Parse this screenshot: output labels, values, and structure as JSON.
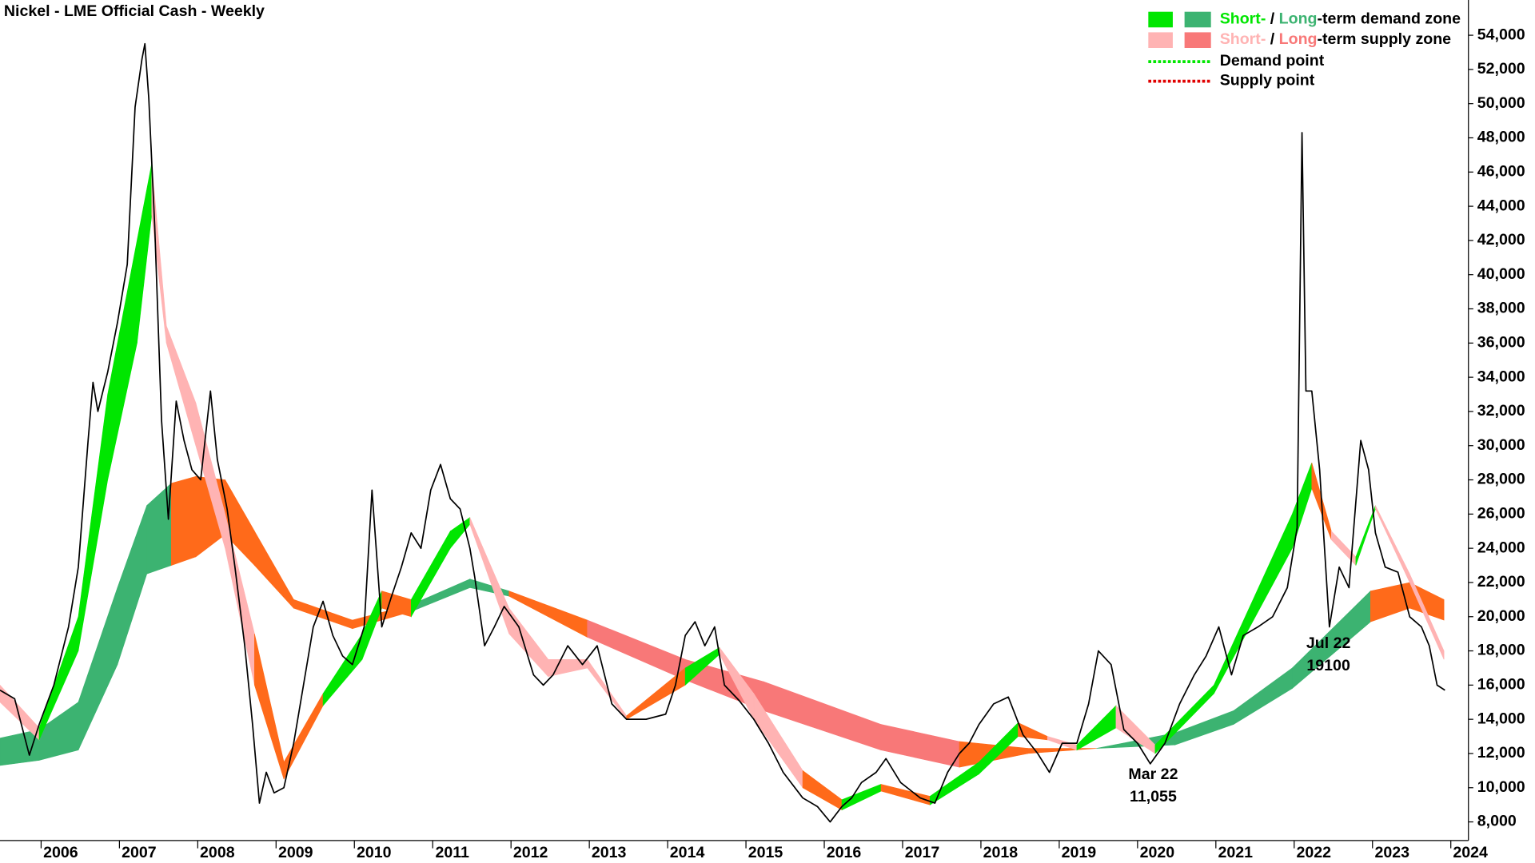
{
  "chart_data": {
    "type": "line",
    "title": "Nickel - LME Official Cash - Weekly",
    "xlim": [
      2005.475,
      2024.225
    ],
    "xticks": [
      2006,
      2007,
      2008,
      2009,
      2010,
      2011,
      2012,
      2013,
      2014,
      2015,
      2016,
      2017,
      2018,
      2019,
      2020,
      2021,
      2022,
      2023,
      2024
    ],
    "ylim": [
      6913,
      56060
    ],
    "yticks": [
      {
        "value": 8000,
        "label": "8,000"
      },
      {
        "value": 10000,
        "label": "10,000"
      },
      {
        "value": 12000,
        "label": "12,000"
      },
      {
        "value": 14000,
        "label": "14,000"
      },
      {
        "value": 16000,
        "label": "16,000"
      },
      {
        "value": 18000,
        "label": "18,000"
      },
      {
        "value": 20000,
        "label": "20,000"
      },
      {
        "value": 22000,
        "label": "22,000"
      },
      {
        "value": 24000,
        "label": "24,000"
      },
      {
        "value": 26000,
        "label": "26,000"
      },
      {
        "value": 28000,
        "label": "28,000"
      },
      {
        "value": 30000,
        "label": "30,000"
      },
      {
        "value": 32000,
        "label": "32,000"
      },
      {
        "value": 34000,
        "label": "34,000"
      },
      {
        "value": 36000,
        "label": "36,000"
      },
      {
        "value": 38000,
        "label": "38,000"
      },
      {
        "value": 40000,
        "label": "40,000"
      },
      {
        "value": 42000,
        "label": "42,000"
      },
      {
        "value": 44000,
        "label": "44,000"
      },
      {
        "value": 46000,
        "label": "46,000"
      },
      {
        "value": 48000,
        "label": "48,000"
      },
      {
        "value": 50000,
        "label": "50,000"
      },
      {
        "value": 52000,
        "label": "52,000"
      },
      {
        "value": 54000,
        "label": "54,000"
      }
    ],
    "grid": false,
    "bands": [
      {
        "x": [
          2005.475,
          2005.975,
          2006.475,
          2006.975,
          2007.35,
          2007.6625,
          2007.975,
          2008.35,
          2008.725,
          2009.225,
          2009.975,
          2010.725,
          2011.475,
          2011.975,
          2012.975,
          2014.225,
          2015.225,
          2016.725,
          2017.725,
          2018.6,
          2019.475,
          2020.475,
          2021.225,
          2021.975,
          2022.975,
          2023.475,
          2023.9125
        ],
        "upper": [
          12900,
          13400,
          15000,
          21700,
          26500,
          27800,
          28200,
          28000,
          25000,
          21000,
          19800,
          20700,
          22200,
          21500,
          19800,
          17500,
          16200,
          13700,
          12700,
          12300,
          12300,
          13200,
          14500,
          17000,
          21500,
          22000,
          21000
        ],
        "lower": [
          11300,
          11600,
          12200,
          17200,
          22500,
          23000,
          23500,
          24800,
          23000,
          20500,
          19300,
          20300,
          21700,
          21200,
          18800,
          16300,
          14500,
          12200,
          11200,
          12000,
          12300,
          12500,
          13700,
          15800,
          19700,
          20500,
          19800
        ],
        "colors": [
          "#3cb371",
          "#3cb371",
          "#3cb371",
          "#3cb371",
          "#3cb371",
          "#ff6a1a",
          "#ff6a1a",
          "#ff6a1a",
          "#ff6a1a",
          "#ff6a1a",
          "#ff6a1a",
          "#3cb371",
          "#3cb371",
          "#ff6a1a",
          "#f87878",
          "#f87878",
          "#f87878",
          "#f87878",
          "#ff6a1a",
          "#ff6a1a",
          "#3cb371",
          "#3cb371",
          "#3cb371",
          "#3cb371",
          "#ff6a1a",
          "#ff6a1a"
        ]
      },
      {
        "x": [
          2005.475,
          2005.975,
          2006.475,
          2006.85,
          2007.225,
          2007.4125,
          2007.6,
          2007.975,
          2008.35,
          2008.725,
          2009.1,
          2009.6,
          2010.1,
          2010.35,
          2010.725,
          2011.225,
          2011.475,
          2011.975,
          2012.475,
          2012.975,
          2013.475,
          2014.225,
          2014.6625,
          2015.1,
          2015.725,
          2016.225,
          2016.725,
          2017.35,
          2017.975,
          2018.475,
          2018.85,
          2019.225,
          2019.725,
          2020.225,
          2020.975,
          2021.975,
          2022.225,
          2022.475,
          2022.7875,
          2023.0375,
          2023.475,
          2023.9125
        ],
        "upper": [
          16000,
          13500,
          20000,
          33000,
          42000,
          46500,
          37000,
          32500,
          26000,
          19000,
          11500,
          15500,
          19000,
          21500,
          21000,
          25000,
          25800,
          20500,
          17500,
          17500,
          14200,
          17000,
          18200,
          15500,
          11000,
          9300,
          10200,
          9500,
          11500,
          13800,
          13000,
          12500,
          14800,
          12500,
          16000,
          26000,
          29000,
          25000,
          23500,
          26500,
          22500,
          18000
        ],
        "lower": [
          15000,
          12800,
          18000,
          28000,
          36000,
          43500,
          36000,
          30000,
          24000,
          16000,
          10500,
          14800,
          17500,
          20500,
          20000,
          24000,
          25400,
          19000,
          16500,
          17000,
          14000,
          16000,
          17800,
          14000,
          10000,
          8700,
          9800,
          9000,
          10800,
          13000,
          12800,
          12200,
          13500,
          12000,
          15500,
          24000,
          27500,
          24500,
          23000,
          26300,
          22000,
          17500
        ],
        "colors": [
          "#ffb3b3",
          "#00e600",
          "#00e600",
          "#00e600",
          "#00e600",
          "#ffb3b3",
          "#ffb3b3",
          "#ffb3b3",
          "#ffb3b3",
          "#ff6a1a",
          "#ff6a1a",
          "#00e600",
          "#00e600",
          "#ff6a1a",
          "#00e600",
          "#00e600",
          "#ffb3b3",
          "#ffb3b3",
          "#ffb3b3",
          "#ffb3b3",
          "#ff6a1a",
          "#00e600",
          "#ffb3b3",
          "#ffb3b3",
          "#ff6a1a",
          "#00e600",
          "#ff6a1a",
          "#00e600",
          "#00e600",
          "#ff6a1a",
          "#ffb3b3",
          "#00e600",
          "#ffb3b3",
          "#00e600",
          "#00e600",
          "#00e600",
          "#ff6a1a",
          "#ffb3b3",
          "#00e600",
          "#ffb3b3",
          "#ffb3b3"
        ]
      }
    ],
    "series": [
      {
        "color": "#000000",
        "x": [
          2005.475,
          2005.6625,
          2005.85,
          2005.975,
          2006.1625,
          2006.35,
          2006.475,
          2006.6,
          2006.6625,
          2006.725,
          2006.85,
          2006.975,
          2007.1,
          2007.2,
          2007.2875,
          2007.325,
          2007.375,
          2007.45,
          2007.5375,
          2007.625,
          2007.725,
          2007.825,
          2007.925,
          2008.0375,
          2008.1625,
          2008.25,
          2008.375,
          2008.475,
          2008.6,
          2008.7,
          2008.7875,
          2008.875,
          2008.975,
          2009.1,
          2009.225,
          2009.35,
          2009.475,
          2009.6,
          2009.725,
          2009.85,
          2009.975,
          2010.125,
          2010.225,
          2010.35,
          2010.475,
          2010.6,
          2010.725,
          2010.85,
          2010.975,
          2011.1,
          2011.225,
          2011.35,
          2011.475,
          2011.5375,
          2011.6625,
          2011.7875,
          2011.9125,
          2012.1,
          2012.2875,
          2012.4125,
          2012.5375,
          2012.725,
          2012.9125,
          2013.1,
          2013.2875,
          2013.475,
          2013.725,
          2013.975,
          2014.1,
          2014.225,
          2014.35,
          2014.475,
          2014.6,
          2014.725,
          2014.9125,
          2015.1,
          2015.2875,
          2015.475,
          2015.725,
          2015.9125,
          2016.075,
          2016.225,
          2016.35,
          2016.475,
          2016.6625,
          2016.7875,
          2016.975,
          2017.225,
          2017.4125,
          2017.575,
          2017.725,
          2017.85,
          2017.975,
          2018.1625,
          2018.35,
          2018.5375,
          2018.725,
          2018.875,
          2019.0375,
          2019.225,
          2019.375,
          2019.5,
          2019.6625,
          2019.825,
          2020.0,
          2020.1625,
          2020.35,
          2020.5375,
          2020.725,
          2020.875,
          2021.0375,
          2021.2,
          2021.35,
          2021.5375,
          2021.725,
          2021.9125,
          2022.0375,
          2022.1,
          2022.15,
          2022.225,
          2022.325,
          2022.45,
          2022.575,
          2022.7,
          2022.85,
          2022.95,
          2023.0375,
          2023.1625,
          2023.325,
          2023.475,
          2023.625,
          2023.725,
          2023.825,
          2023.925
        ],
        "values": [
          15700,
          15200,
          11900,
          13700,
          16000,
          19400,
          22900,
          30300,
          33700,
          32000,
          34300,
          37200,
          40600,
          49800,
          52600,
          53500,
          50300,
          42900,
          31500,
          25700,
          32600,
          30300,
          28600,
          28000,
          33200,
          29200,
          26300,
          22900,
          18300,
          13700,
          9100,
          10900,
          9700,
          10000,
          12600,
          16000,
          19400,
          20900,
          18900,
          17700,
          17200,
          19400,
          27400,
          19400,
          21200,
          22900,
          24900,
          24000,
          27400,
          28900,
          26900,
          26300,
          24000,
          22300,
          18300,
          19400,
          20600,
          19400,
          16600,
          16000,
          16600,
          18300,
          17200,
          18300,
          14900,
          14000,
          14000,
          14300,
          16000,
          18900,
          19700,
          18300,
          19400,
          16000,
          15100,
          14000,
          12600,
          10900,
          9400,
          8900,
          8000,
          8900,
          9400,
          10300,
          10900,
          11700,
          10300,
          9400,
          9100,
          10900,
          12000,
          12600,
          13700,
          14900,
          15300,
          13100,
          12000,
          10900,
          12600,
          12600,
          14900,
          18000,
          17200,
          13400,
          12600,
          11400,
          12600,
          14900,
          16600,
          17700,
          19400,
          16600,
          18900,
          19400,
          20000,
          21700,
          25200,
          48300,
          33200,
          33200,
          28600,
          19400,
          22900,
          21700,
          30300,
          28600,
          24900,
          22900,
          22600,
          20000,
          19400,
          18300,
          16000,
          15700
        ]
      }
    ],
    "legend": [
      {
        "swatches": [
          "#00e600",
          "#3cb371"
        ],
        "parts": [
          {
            "text": "Short-",
            "color": "#00e600"
          },
          {
            "text": " / "
          },
          {
            "text": "Long",
            "color": "#3cb371"
          },
          {
            "text": "-term demand zone"
          }
        ]
      },
      {
        "swatches": [
          "#ffb3b3",
          "#f87878"
        ],
        "parts": [
          {
            "text": "Short-",
            "color": "#ffb3b3"
          },
          {
            "text": " / "
          },
          {
            "text": "Long",
            "color": "#f87878"
          },
          {
            "text": "-term supply zone"
          }
        ]
      },
      {
        "dotted": "#00e600",
        "parts": [
          {
            "text": "Demand point"
          }
        ]
      },
      {
        "dotted": "#e00000",
        "parts": [
          {
            "text": "Supply point"
          }
        ]
      }
    ],
    "annotations": [
      {
        "lines": [
          "Mar 22",
          "11,055"
        ]
      },
      {
        "lines": [
          "Jul 22",
          "19100"
        ]
      }
    ]
  }
}
